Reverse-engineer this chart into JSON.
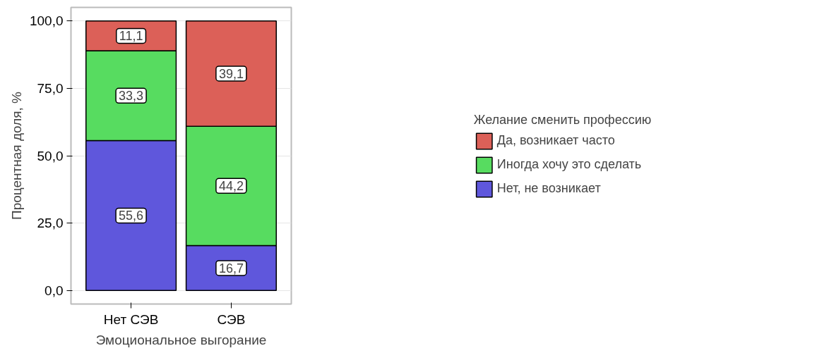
{
  "chart_data": {
    "type": "bar",
    "stacked": true,
    "xlabel": "Эмоциональное выгорание",
    "ylabel": "Процентная доля, %",
    "legend_title": "Желание сменить профессию",
    "legend": "right",
    "grid": "y",
    "categories": [
      "Нет СЭВ",
      "СЭВ"
    ],
    "ylim": [
      -5,
      105
    ],
    "yticks": [
      {
        "value": 0,
        "label": "0,0"
      },
      {
        "value": 25,
        "label": "25,0"
      },
      {
        "value": 50,
        "label": "50,0"
      },
      {
        "value": 75,
        "label": "75,0"
      },
      {
        "value": 100,
        "label": "100,0"
      }
    ],
    "series": [
      {
        "name": "Нет, не возникает",
        "color": "#5f57dc",
        "values": [
          55.6,
          16.7
        ],
        "value_labels": [
          "55,6",
          "16,7"
        ]
      },
      {
        "name": "Иногда хочу это сделать",
        "color": "#57dc60",
        "values": [
          33.3,
          44.2
        ],
        "value_labels": [
          "33,3",
          "44,2"
        ]
      },
      {
        "name": "Да, возникает часто",
        "color": "#dc6058",
        "values": [
          11.1,
          39.1
        ],
        "value_labels": [
          "11,1",
          "39,1"
        ]
      }
    ]
  }
}
